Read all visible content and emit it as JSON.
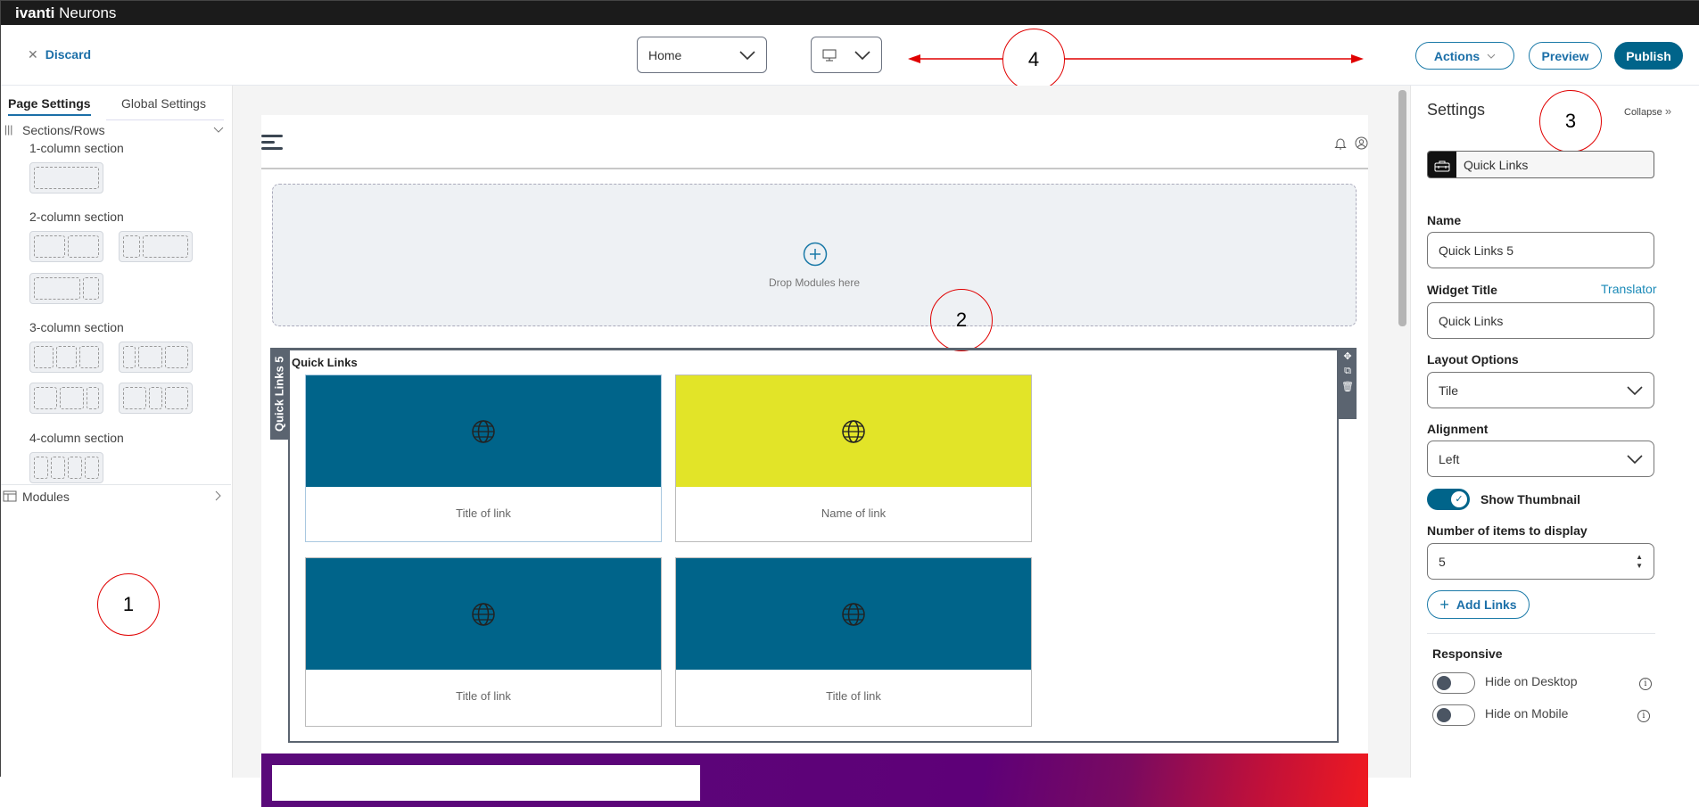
{
  "app": {
    "brand_bold": "ivanti",
    "brand_name": "Neurons"
  },
  "header": {
    "discard": "Discard",
    "page_select": "Home",
    "device_select_icon": "desktop-icon",
    "actions": "Actions",
    "preview": "Preview",
    "publish": "Publish"
  },
  "annotations": [
    "1",
    "2",
    "3",
    "4"
  ],
  "left": {
    "tabs": [
      "Page Settings",
      "Global Settings"
    ],
    "active_tab": "Page Settings",
    "sections_title": "Sections/Rows",
    "groups": [
      "1-column section",
      "2-column section",
      "3-column section",
      "4-column section"
    ],
    "modules": "Modules"
  },
  "canvas": {
    "drop_text": "Drop Modules here",
    "widget_tab": "Quick Links 5",
    "widget_title": "Quick Links",
    "tiles": [
      {
        "label": "Title of link",
        "color": "#00648a"
      },
      {
        "label": "Name of link",
        "color": "#e2e428"
      },
      {
        "label": "Title of link",
        "color": "#00648a"
      },
      {
        "label": "Title of link",
        "color": "#00648a"
      }
    ]
  },
  "settings": {
    "title": "Settings",
    "collapse": "Collapse",
    "module_type": "Quick Links",
    "name_label": "Name",
    "name_value": "Quick Links 5",
    "widget_title_label": "Widget Title",
    "translator": "Translator",
    "widget_title_value": "Quick Links",
    "layout_label": "Layout Options",
    "layout_value": "Tile",
    "alignment_label": "Alignment",
    "alignment_value": "Left",
    "show_thumbnail": "Show Thumbnail",
    "show_thumbnail_on": true,
    "items_label": "Number of items to display",
    "items_value": "5",
    "add_links": "Add Links",
    "responsive": "Responsive",
    "hide_desktop": "Hide on Desktop",
    "hide_desktop_on": false,
    "hide_mobile": "Hide on Mobile",
    "hide_mobile_on": false
  },
  "colors": {
    "accent": "#00648a",
    "button": "#1b6fa8",
    "annotation": "#e00000"
  }
}
